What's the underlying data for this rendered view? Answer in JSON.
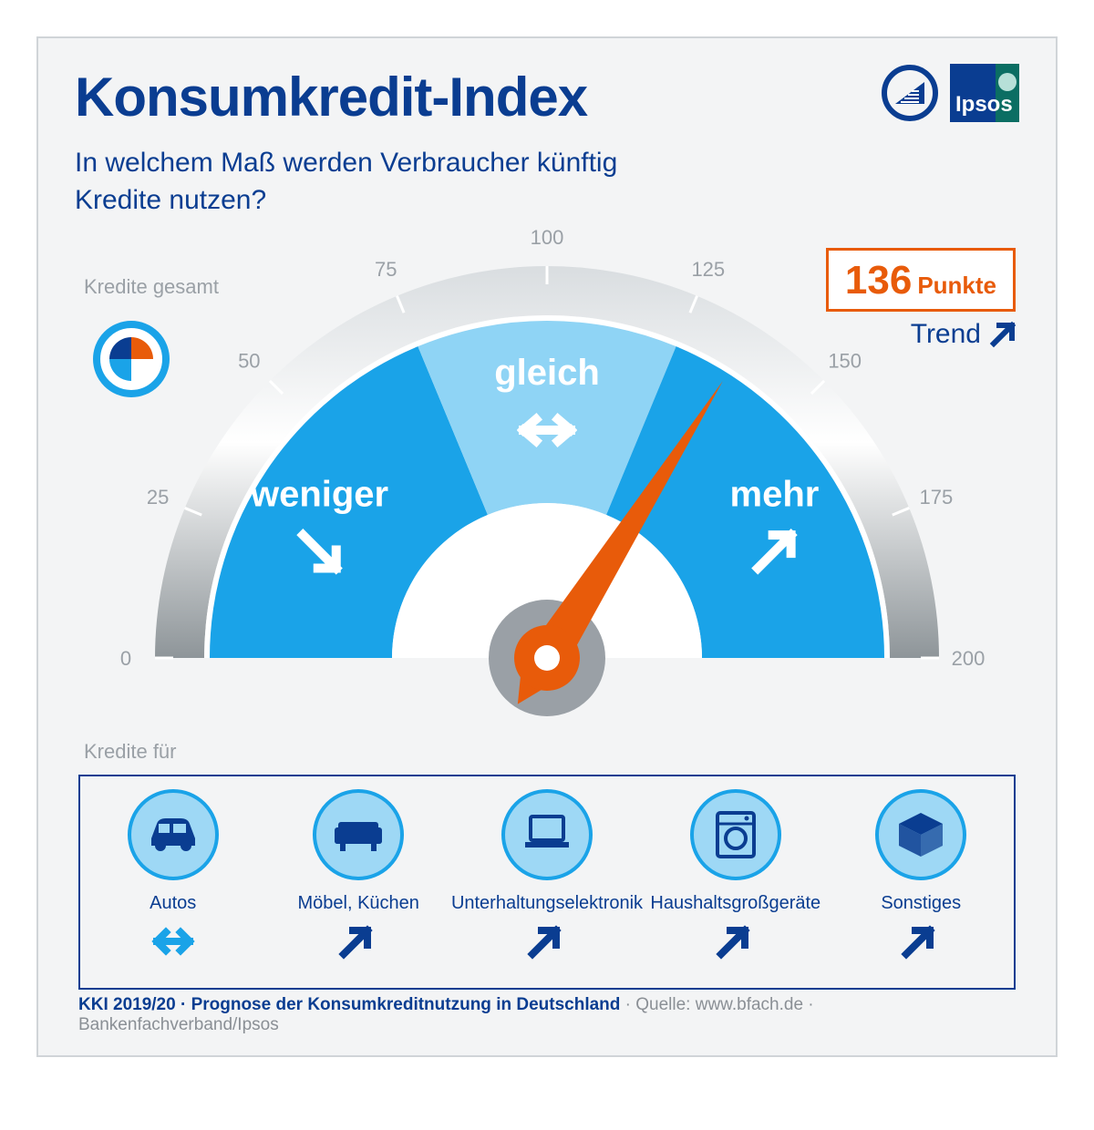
{
  "title": "Konsumkredit-Index",
  "subtitle": "In welchem Maß werden Verbraucher künftig Kredite nutzen?",
  "score": {
    "value": "136",
    "unit": "Punkte"
  },
  "trend": {
    "label": "Trend",
    "direction": "up"
  },
  "labels": {
    "kredite_gesamt": "Kredite gesamt",
    "kredite_fur": "Kredite für"
  },
  "gauge": {
    "min": 0,
    "max": 200,
    "ticks": [
      0,
      25,
      50,
      75,
      100,
      125,
      150,
      175,
      200
    ],
    "value": 136,
    "segments": [
      {
        "label": "weniger",
        "icon": "down-right",
        "start": 0,
        "end": 75,
        "color": "#1aa3e8"
      },
      {
        "label": "gleich",
        "icon": "left-right",
        "start": 75,
        "end": 125,
        "color": "#8fd4f5"
      },
      {
        "label": "mehr",
        "icon": "up-right",
        "start": 125,
        "end": 200,
        "color": "#1aa3e8"
      }
    ],
    "colors": {
      "rim_outer": "#d9dde0",
      "rim_mid": "#ffffff",
      "rim_inner_dark": "#8e9599",
      "inner_ring": "#ffffff",
      "hub_grey": "#9aa0a6",
      "needle": "#e85b0a",
      "tick_label": "#9aa0a6",
      "seg_text": "#ffffff"
    },
    "tick_fontsize": 22,
    "seg_label_fontsize": 40,
    "radius_outer": 430,
    "radius_color_outer": 370,
    "radius_color_inner": 170,
    "radius_inner_white": 140
  },
  "mini_circle": {
    "ring": "#1aa3e8",
    "q1": "#e85b0a",
    "q2": "#0a3d91",
    "q3": "#1aa3e8",
    "q4": "#ffffff"
  },
  "categories": [
    {
      "name": "Autos",
      "icon": "car",
      "trend": "left-right"
    },
    {
      "name": "Möbel, Küchen",
      "icon": "sofa",
      "trend": "up-right"
    },
    {
      "name": "Unterhaltungselektronik",
      "icon": "laptop",
      "trend": "up-right"
    },
    {
      "name": "Haushaltsgroßgeräte",
      "icon": "washer",
      "trend": "up-right"
    },
    {
      "name": "Sonstiges",
      "icon": "box",
      "trend": "up-right"
    }
  ],
  "category_style": {
    "circle_fill": "#9ed8f5",
    "circle_stroke": "#1aa3e8",
    "icon_color": "#0a3d91",
    "label_color": "#0a3d91",
    "trend_color_lr": "#1aa3e8",
    "trend_color_up": "#0a3d91",
    "circle_r": 48
  },
  "footer": {
    "strong": "KKI 2019/20 · Prognose der Konsumkreditnutzung in Deutschland",
    "rest": " · Quelle: www.bfach.de · Bankenfachverband/Ipsos"
  },
  "logos": {
    "ipsos_text": "Ipsos"
  }
}
